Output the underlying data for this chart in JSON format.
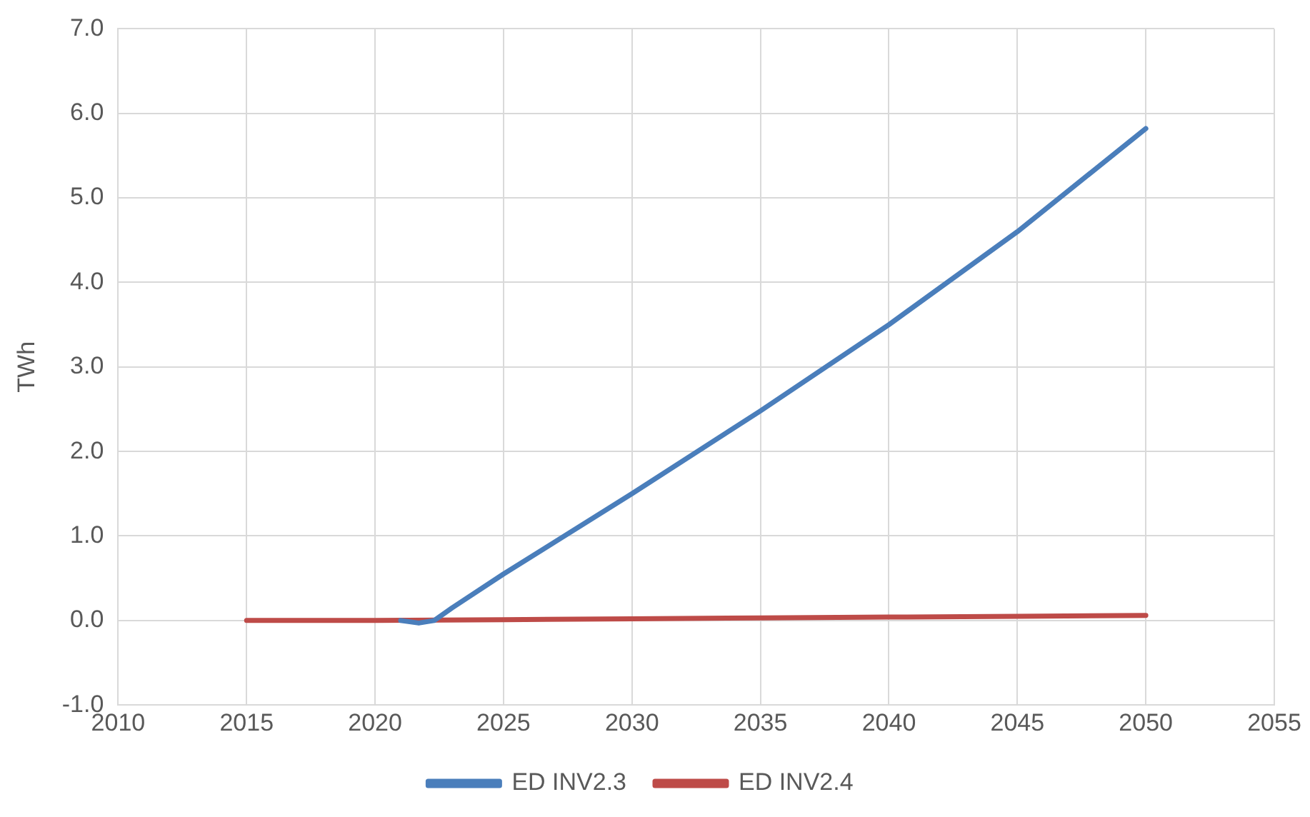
{
  "chart_data": {
    "type": "line",
    "ylabel": "TWh",
    "series": [
      {
        "name": "ED INV2.3",
        "color": "#4a7ebb",
        "x": [
          2021,
          2021.7,
          2022.3,
          2023,
          2025,
          2030,
          2035,
          2040,
          2045,
          2050
        ],
        "values": [
          0,
          -0.03,
          0,
          0.15,
          0.55,
          1.5,
          2.48,
          3.5,
          4.6,
          5.82
        ]
      },
      {
        "name": "ED INV2.4",
        "color": "#be4b48",
        "x": [
          2015,
          2020,
          2025,
          2030,
          2035,
          2040,
          2045,
          2050
        ],
        "values": [
          0,
          0,
          0.01,
          0.02,
          0.03,
          0.04,
          0.05,
          0.06
        ]
      }
    ],
    "xlim": [
      2010,
      2055
    ],
    "xticks": [
      2010,
      2015,
      2020,
      2025,
      2030,
      2035,
      2040,
      2045,
      2050,
      2055
    ],
    "ylim": [
      -1,
      7
    ],
    "yticks": [
      {
        "value": -1,
        "label": "-1.0"
      },
      {
        "value": 0,
        "label": "0.0"
      },
      {
        "value": 1,
        "label": "1.0"
      },
      {
        "value": 2,
        "label": "2.0"
      },
      {
        "value": 3,
        "label": "3.0"
      },
      {
        "value": 4,
        "label": "4.0"
      },
      {
        "value": 5,
        "label": "5.0"
      },
      {
        "value": 6,
        "label": "6.0"
      },
      {
        "value": 7,
        "label": "7.0"
      }
    ],
    "grid": true,
    "legend": "bottom",
    "marker": "none",
    "line_style": "solid"
  }
}
